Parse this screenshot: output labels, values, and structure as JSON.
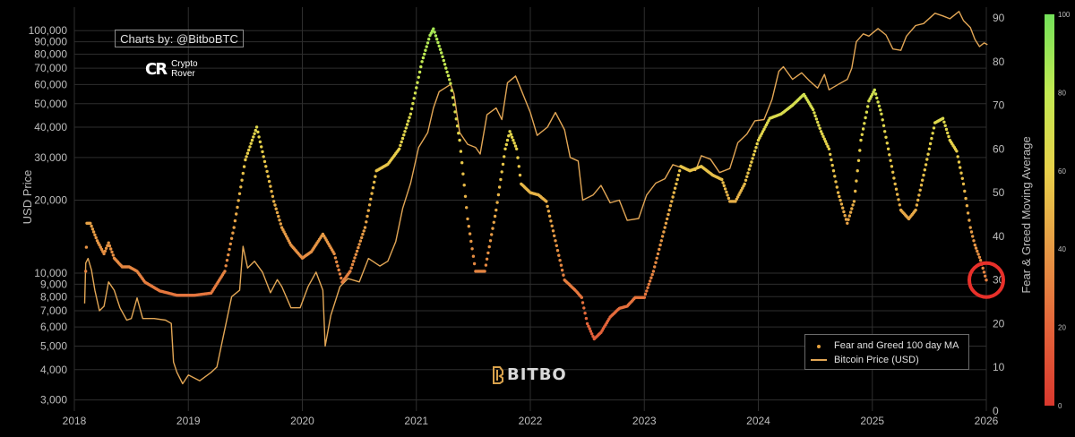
{
  "credit": "Charts by: @BitboBTC",
  "logo_text": [
    "Crypto",
    "Rover"
  ],
  "watermark": "BITBO",
  "colors": {
    "background": "#000000",
    "price_line": "#e2a655",
    "marker_circle": "#e8302a"
  },
  "chart_data": {
    "type": "line",
    "x_range": [
      "2018-01-01",
      "2026-01-01"
    ],
    "x_ticks": [
      "2018",
      "2019",
      "2020",
      "2021",
      "2022",
      "2023",
      "2024",
      "2025",
      "2026"
    ],
    "y_left": {
      "label": "USD Price",
      "scale": "log",
      "range": [
        2700,
        125000
      ],
      "ticks": [
        "100,000",
        "90,000",
        "80,000",
        "70,000",
        "60,000",
        "50,000",
        "40,000",
        "30,000",
        "20,000",
        "10,000",
        "9,000",
        "8,000",
        "7,000",
        "6,000",
        "5,000",
        "4,000",
        "3,000"
      ],
      "tick_values": [
        100000,
        90000,
        80000,
        70000,
        60000,
        50000,
        40000,
        30000,
        20000,
        10000,
        9000,
        8000,
        7000,
        6000,
        5000,
        4000,
        3000
      ]
    },
    "y_right": {
      "label": "Fear & Greed Moving Average",
      "range": [
        0,
        90
      ],
      "ticks": [
        "90",
        "80",
        "70",
        "60",
        "50",
        "40",
        "30",
        "20",
        "10",
        "0"
      ],
      "tick_values": [
        90,
        80,
        70,
        60,
        50,
        40,
        30,
        20,
        10,
        0
      ]
    },
    "colorbar": {
      "ticks": [
        "100",
        "80",
        "60",
        "40",
        "20",
        "0"
      ],
      "tick_values": [
        100,
        80,
        60,
        40,
        20,
        0
      ]
    },
    "grid": true,
    "legend_position": "bottom-right",
    "series": [
      {
        "name": "Fear and Greed 100 day MA",
        "axis": "right",
        "style": "dots",
        "points": [
          [
            2018.1,
            32
          ],
          [
            2018.11,
            43
          ],
          [
            2018.14,
            43
          ],
          [
            2018.2,
            39
          ],
          [
            2018.26,
            36
          ],
          [
            2018.3,
            38.5
          ],
          [
            2018.35,
            35
          ],
          [
            2018.42,
            33
          ],
          [
            2018.48,
            33
          ],
          [
            2018.55,
            32
          ],
          [
            2018.62,
            29.5
          ],
          [
            2018.75,
            27.5
          ],
          [
            2018.9,
            26.5
          ],
          [
            2019.05,
            26.5
          ],
          [
            2019.2,
            27
          ],
          [
            2019.32,
            32
          ],
          [
            2019.4,
            42
          ],
          [
            2019.5,
            57.5
          ],
          [
            2019.6,
            65
          ],
          [
            2019.68,
            56
          ],
          [
            2019.75,
            48
          ],
          [
            2019.82,
            42
          ],
          [
            2019.9,
            38
          ],
          [
            2020.0,
            35
          ],
          [
            2020.08,
            36.5
          ],
          [
            2020.18,
            40.5
          ],
          [
            2020.28,
            36
          ],
          [
            2020.35,
            29.5
          ],
          [
            2020.42,
            32
          ],
          [
            2020.55,
            42
          ],
          [
            2020.65,
            55
          ],
          [
            2020.75,
            56.5
          ],
          [
            2020.85,
            60
          ],
          [
            2020.95,
            68
          ],
          [
            2021.05,
            80
          ],
          [
            2021.12,
            86
          ],
          [
            2021.15,
            87.5
          ],
          [
            2021.22,
            82
          ],
          [
            2021.3,
            75
          ],
          [
            2021.38,
            62
          ],
          [
            2021.45,
            44
          ],
          [
            2021.52,
            32
          ],
          [
            2021.6,
            32
          ],
          [
            2021.7,
            46
          ],
          [
            2021.78,
            60
          ],
          [
            2021.82,
            64
          ],
          [
            2021.88,
            60
          ],
          [
            2021.92,
            52
          ],
          [
            2022.0,
            50
          ],
          [
            2022.07,
            49.5
          ],
          [
            2022.14,
            48
          ],
          [
            2022.22,
            39
          ],
          [
            2022.3,
            30
          ],
          [
            2022.4,
            27.5
          ],
          [
            2022.45,
            26
          ],
          [
            2022.5,
            20
          ],
          [
            2022.56,
            16.5
          ],
          [
            2022.62,
            18
          ],
          [
            2022.7,
            21.5
          ],
          [
            2022.78,
            23.5
          ],
          [
            2022.85,
            24
          ],
          [
            2022.92,
            26
          ],
          [
            2023.0,
            26
          ],
          [
            2023.08,
            32
          ],
          [
            2023.16,
            40
          ],
          [
            2023.24,
            48
          ],
          [
            2023.32,
            56
          ],
          [
            2023.4,
            55
          ],
          [
            2023.5,
            56
          ],
          [
            2023.6,
            54
          ],
          [
            2023.68,
            53
          ],
          [
            2023.75,
            48
          ],
          [
            2023.8,
            48
          ],
          [
            2023.88,
            52
          ],
          [
            2024.0,
            62
          ],
          [
            2024.1,
            67
          ],
          [
            2024.2,
            68
          ],
          [
            2024.3,
            70
          ],
          [
            2024.4,
            72.5
          ],
          [
            2024.48,
            69
          ],
          [
            2024.55,
            64
          ],
          [
            2024.62,
            60
          ],
          [
            2024.7,
            50
          ],
          [
            2024.78,
            43
          ],
          [
            2024.84,
            48
          ],
          [
            2024.9,
            62
          ],
          [
            2024.97,
            71
          ],
          [
            2025.02,
            73.5
          ],
          [
            2025.08,
            68
          ],
          [
            2025.14,
            60
          ],
          [
            2025.2,
            52
          ],
          [
            2025.25,
            46
          ],
          [
            2025.32,
            44
          ],
          [
            2025.38,
            46
          ],
          [
            2025.45,
            54
          ],
          [
            2025.55,
            66
          ],
          [
            2025.62,
            67
          ],
          [
            2025.68,
            62
          ],
          [
            2025.74,
            59.5
          ],
          [
            2025.8,
            52
          ],
          [
            2025.86,
            42
          ],
          [
            2025.9,
            38
          ],
          [
            2025.95,
            34.5
          ],
          [
            2026.0,
            30
          ]
        ]
      },
      {
        "name": "Bitcoin Price (USD)",
        "axis": "left",
        "style": "line",
        "color": "#e2a655",
        "points": [
          [
            2018.09,
            7500
          ],
          [
            2018.1,
            11000
          ],
          [
            2018.12,
            11500
          ],
          [
            2018.15,
            10300
          ],
          [
            2018.18,
            8500
          ],
          [
            2018.22,
            7000
          ],
          [
            2018.26,
            7300
          ],
          [
            2018.3,
            9200
          ],
          [
            2018.35,
            8500
          ],
          [
            2018.4,
            7200
          ],
          [
            2018.46,
            6400
          ],
          [
            2018.5,
            6500
          ],
          [
            2018.55,
            7900
          ],
          [
            2018.6,
            6500
          ],
          [
            2018.7,
            6500
          ],
          [
            2018.8,
            6400
          ],
          [
            2018.85,
            6200
          ],
          [
            2018.87,
            4300
          ],
          [
            2018.9,
            3900
          ],
          [
            2018.95,
            3500
          ],
          [
            2019.0,
            3800
          ],
          [
            2019.1,
            3600
          ],
          [
            2019.2,
            3900
          ],
          [
            2019.25,
            4100
          ],
          [
            2019.3,
            5300
          ],
          [
            2019.38,
            8000
          ],
          [
            2019.45,
            8500
          ],
          [
            2019.48,
            12900
          ],
          [
            2019.52,
            10500
          ],
          [
            2019.58,
            11200
          ],
          [
            2019.65,
            10100
          ],
          [
            2019.72,
            8300
          ],
          [
            2019.78,
            9400
          ],
          [
            2019.82,
            8800
          ],
          [
            2019.9,
            7200
          ],
          [
            2019.98,
            7200
          ],
          [
            2020.05,
            8800
          ],
          [
            2020.12,
            10100
          ],
          [
            2020.18,
            8500
          ],
          [
            2020.2,
            5000
          ],
          [
            2020.25,
            6700
          ],
          [
            2020.33,
            8800
          ],
          [
            2020.4,
            9500
          ],
          [
            2020.5,
            9200
          ],
          [
            2020.58,
            11500
          ],
          [
            2020.68,
            10700
          ],
          [
            2020.75,
            11200
          ],
          [
            2020.82,
            13500
          ],
          [
            2020.88,
            18500
          ],
          [
            2020.95,
            23500
          ],
          [
            2021.02,
            33000
          ],
          [
            2021.1,
            38000
          ],
          [
            2021.15,
            48000
          ],
          [
            2021.2,
            56000
          ],
          [
            2021.25,
            58000
          ],
          [
            2021.3,
            60000
          ],
          [
            2021.33,
            55000
          ],
          [
            2021.38,
            38000
          ],
          [
            2021.45,
            34000
          ],
          [
            2021.52,
            33000
          ],
          [
            2021.56,
            31000
          ],
          [
            2021.62,
            45000
          ],
          [
            2021.7,
            48000
          ],
          [
            2021.75,
            43000
          ],
          [
            2021.8,
            61000
          ],
          [
            2021.87,
            65000
          ],
          [
            2021.92,
            57000
          ],
          [
            2022.0,
            46000
          ],
          [
            2022.06,
            37000
          ],
          [
            2022.15,
            40000
          ],
          [
            2022.22,
            46000
          ],
          [
            2022.3,
            39000
          ],
          [
            2022.35,
            30000
          ],
          [
            2022.42,
            29000
          ],
          [
            2022.46,
            20000
          ],
          [
            2022.55,
            21000
          ],
          [
            2022.62,
            23000
          ],
          [
            2022.7,
            19500
          ],
          [
            2022.78,
            20000
          ],
          [
            2022.85,
            16500
          ],
          [
            2022.95,
            16800
          ],
          [
            2023.02,
            21000
          ],
          [
            2023.1,
            23500
          ],
          [
            2023.18,
            24500
          ],
          [
            2023.25,
            28000
          ],
          [
            2023.35,
            27000
          ],
          [
            2023.45,
            26500
          ],
          [
            2023.5,
            30500
          ],
          [
            2023.58,
            29500
          ],
          [
            2023.66,
            26000
          ],
          [
            2023.75,
            27000
          ],
          [
            2023.82,
            34500
          ],
          [
            2023.9,
            37500
          ],
          [
            2023.97,
            42500
          ],
          [
            2024.05,
            43000
          ],
          [
            2024.12,
            52000
          ],
          [
            2024.18,
            68000
          ],
          [
            2024.22,
            71000
          ],
          [
            2024.3,
            63000
          ],
          [
            2024.38,
            67000
          ],
          [
            2024.45,
            62000
          ],
          [
            2024.52,
            58000
          ],
          [
            2024.58,
            66000
          ],
          [
            2024.62,
            57000
          ],
          [
            2024.7,
            60000
          ],
          [
            2024.78,
            63000
          ],
          [
            2024.82,
            70000
          ],
          [
            2024.86,
            90000
          ],
          [
            2024.92,
            97000
          ],
          [
            2024.97,
            95000
          ],
          [
            2025.05,
            102000
          ],
          [
            2025.12,
            96000
          ],
          [
            2025.18,
            84000
          ],
          [
            2025.25,
            83000
          ],
          [
            2025.3,
            95000
          ],
          [
            2025.38,
            105000
          ],
          [
            2025.45,
            107000
          ],
          [
            2025.55,
            118000
          ],
          [
            2025.62,
            115000
          ],
          [
            2025.68,
            112000
          ],
          [
            2025.76,
            120000
          ],
          [
            2025.8,
            110000
          ],
          [
            2025.86,
            103000
          ],
          [
            2025.9,
            92000
          ],
          [
            2025.94,
            86000
          ],
          [
            2025.98,
            89000
          ],
          [
            2026.01,
            87500
          ]
        ]
      }
    ],
    "annotation": {
      "type": "circle",
      "at": [
        2026.0,
        30
      ]
    }
  }
}
